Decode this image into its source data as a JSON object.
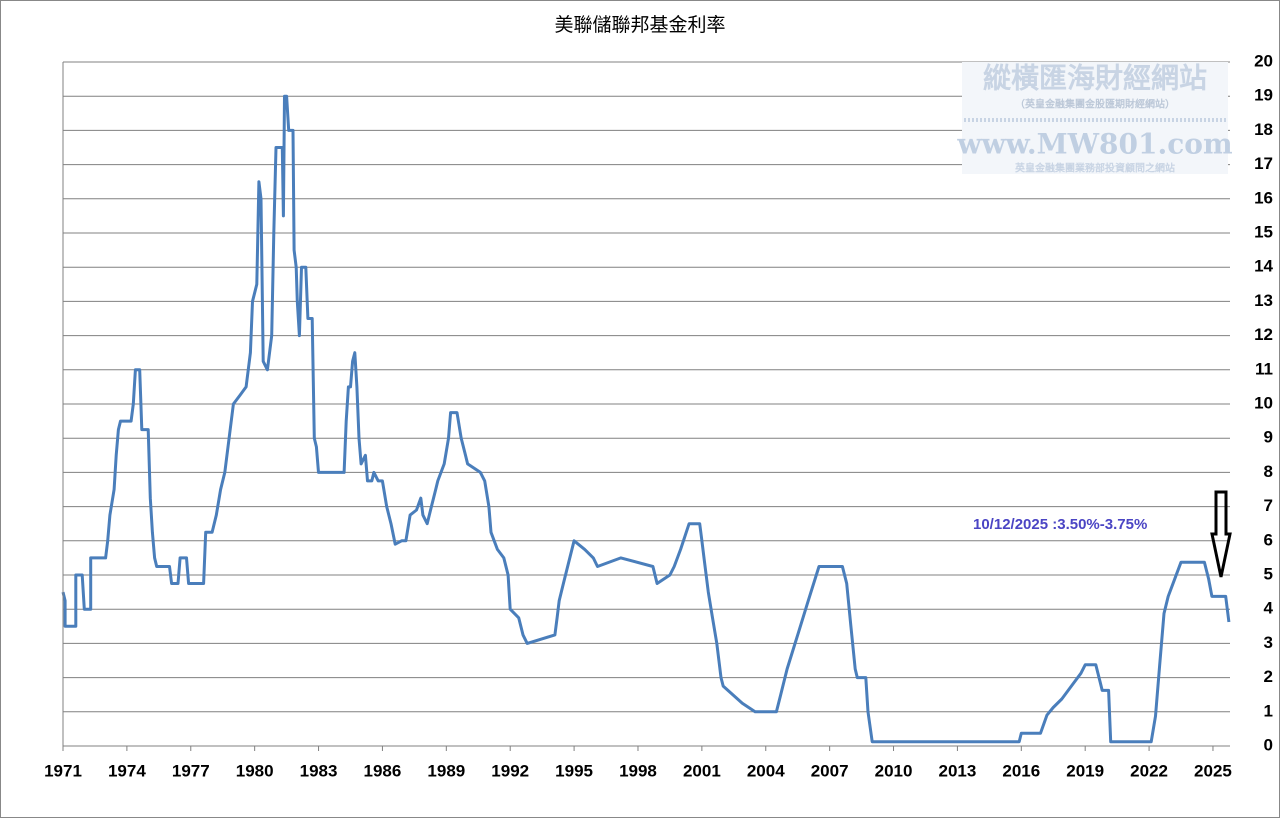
{
  "chart_data": {
    "type": "line",
    "title": "美聯儲聯邦基金利率",
    "annotation": "10/12/2025 :3.50%-3.75%",
    "watermark": {
      "title": "縱橫匯海財經網站",
      "subtitle": "（英皇金融集團金股匯期財經網站）",
      "url": "www.MW801.com",
      "note": "英皇金融集團業務部投資顧問之網站"
    },
    "xlim": [
      1971,
      2025.8
    ],
    "xticks": [
      1971,
      1974,
      1977,
      1980,
      1983,
      1986,
      1989,
      1992,
      1995,
      1998,
      2001,
      2004,
      2007,
      2010,
      2013,
      2016,
      2019,
      2022,
      2025
    ],
    "ylim": [
      0,
      20
    ],
    "yticks": [
      0,
      1,
      2,
      3,
      4,
      5,
      6,
      7,
      8,
      9,
      10,
      11,
      12,
      13,
      14,
      15,
      16,
      17,
      18,
      19,
      20
    ],
    "grid": true,
    "y_axis_side": "right",
    "series": [
      {
        "color": "#4a7ebb",
        "x": [
          1971.0,
          1971.1,
          1971.1,
          1971.6,
          1971.6,
          1971.9,
          1972.0,
          1972.3,
          1972.3,
          1973.0,
          1973.1,
          1973.2,
          1973.4,
          1973.5,
          1973.6,
          1973.7,
          1974.2,
          1974.3,
          1974.4,
          1974.6,
          1974.7,
          1975.0,
          1975.1,
          1975.2,
          1975.3,
          1975.4,
          1976.0,
          1976.1,
          1976.4,
          1976.5,
          1976.8,
          1976.9,
          1977.6,
          1977.7,
          1978.0,
          1978.2,
          1978.4,
          1978.6,
          1978.8,
          1979.0,
          1979.3,
          1979.6,
          1979.8,
          1979.9,
          1980.1,
          1980.2,
          1980.3,
          1980.4,
          1980.6,
          1980.8,
          1980.9,
          1981.0,
          1981.3,
          1981.35,
          1981.4,
          1981.5,
          1981.6,
          1981.8,
          1981.85,
          1981.95,
          1982.0,
          1982.1,
          1982.2,
          1982.4,
          1982.5,
          1982.7,
          1982.8,
          1982.9,
          1983.0,
          1984.2,
          1984.3,
          1984.4,
          1984.5,
          1984.6,
          1984.7,
          1984.8,
          1984.9,
          1985.0,
          1985.2,
          1985.3,
          1985.5,
          1985.6,
          1985.8,
          1986.0,
          1986.2,
          1986.4,
          1986.6,
          1986.9,
          1987.1,
          1987.3,
          1987.6,
          1987.8,
          1987.9,
          1988.1,
          1988.3,
          1988.5,
          1988.6,
          1988.9,
          1989.1,
          1989.2,
          1989.5,
          1989.7,
          1989.9,
          1990.0,
          1990.6,
          1990.8,
          1991.0,
          1991.1,
          1991.4,
          1991.7,
          1991.9,
          1992.0,
          1992.4,
          1992.6,
          1992.8,
          1994.1,
          1994.2,
          1994.3,
          1994.5,
          1994.8,
          1995.0,
          1995.5,
          1995.9,
          1996.1,
          1997.2,
          1998.7,
          1998.8,
          1998.9,
          1999.5,
          1999.7,
          2000.0,
          2000.4,
          2000.9,
          2001.0,
          2001.1,
          2001.3,
          2001.5,
          2001.7,
          2001.8,
          2001.9,
          2002.0,
          2002.9,
          2003.5,
          2004.5,
          2004.7,
          2005.0,
          2005.5,
          2006.0,
          2006.5,
          2007.6,
          2007.8,
          2008.0,
          2008.2,
          2008.3,
          2008.7,
          2008.8,
          2009.0,
          2015.9,
          2016.0,
          2016.9,
          2017.2,
          2017.5,
          2017.9,
          2018.2,
          2018.5,
          2018.8,
          2019.0,
          2019.5,
          2019.7,
          2019.8,
          2020.1,
          2020.2,
          2022.1,
          2022.3,
          2022.5,
          2022.7,
          2022.9,
          2023.2,
          2023.5,
          2024.6,
          2024.8,
          2024.95,
          2025.6,
          2025.75
        ],
        "values": [
          4.5,
          4.25,
          3.5,
          3.5,
          5.0,
          5.0,
          4.0,
          4.0,
          5.5,
          5.5,
          6.0,
          6.75,
          7.5,
          8.5,
          9.25,
          9.5,
          9.5,
          10,
          11,
          11,
          9.25,
          9.25,
          7.25,
          6.25,
          5.5,
          5.25,
          5.25,
          4.75,
          4.75,
          5.5,
          5.5,
          4.75,
          4.75,
          6.25,
          6.25,
          6.75,
          7.5,
          8.0,
          9.0,
          10.0,
          10.25,
          10.5,
          11.5,
          13.0,
          13.5,
          16.5,
          16.0,
          11.25,
          11.0,
          12.0,
          15.0,
          17.5,
          17.5,
          15.5,
          19,
          19,
          18,
          18,
          14.5,
          14.0,
          13.0,
          12.0,
          14.0,
          14.0,
          12.5,
          12.5,
          9.0,
          8.75,
          8.0,
          8.0,
          9.5,
          10.5,
          10.5,
          11.25,
          11.5,
          10.5,
          9.0,
          8.25,
          8.5,
          7.75,
          7.75,
          8.0,
          7.75,
          7.75,
          7.0,
          6.5,
          5.9,
          6.0,
          6.0,
          6.75,
          6.9,
          7.25,
          6.75,
          6.5,
          7.0,
          7.5,
          7.75,
          8.25,
          9.0,
          9.75,
          9.75,
          9.0,
          8.5,
          8.25,
          8.0,
          7.75,
          7.0,
          6.25,
          5.75,
          5.5,
          5.0,
          4.0,
          3.75,
          3.25,
          3.0,
          3.25,
          3.75,
          4.25,
          4.75,
          5.5,
          6.0,
          5.75,
          5.5,
          5.25,
          5.5,
          5.25,
          5.0,
          4.75,
          5.0,
          5.25,
          5.75,
          6.5,
          6.5,
          6.0,
          5.5,
          4.5,
          3.75,
          3.0,
          2.5,
          2.0,
          1.75,
          1.25,
          1.0,
          1.0,
          1.5,
          2.25,
          3.25,
          4.25,
          5.25,
          5.25,
          4.75,
          3.5,
          2.25,
          2.0,
          2.0,
          1.0,
          0.125,
          0.125,
          0.375,
          0.375,
          0.9,
          1.125,
          1.375,
          1.625,
          1.875,
          2.125,
          2.375,
          2.375,
          1.875,
          1.625,
          1.625,
          0.125,
          0.125,
          0.875,
          2.375,
          3.875,
          4.375,
          4.875,
          5.375,
          5.375,
          4.875,
          4.375,
          4.375,
          3.625
        ]
      }
    ]
  }
}
